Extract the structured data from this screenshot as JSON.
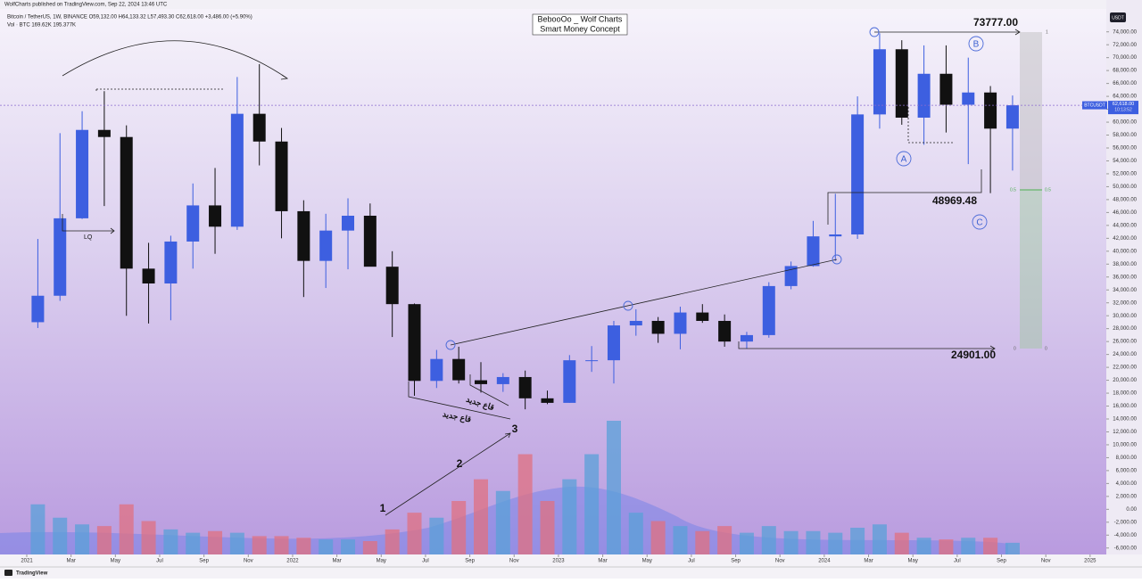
{
  "header": {
    "published": "WolfCharts published on TradingView.com, Sep 22, 2024 13:46 UTC",
    "ohlc": "Bitcoin / TetherUS, 1W, BINANCE  O59,132.00  H64,133.32  L57,493.30  C62,618.00  +3,486.00 (+5.90%)",
    "volume": "Vol · BTC  169.62K  195.377K"
  },
  "annotations": {
    "title1": "BebooOo _ Wolf Charts",
    "title2": "Smart Money Concept",
    "lq": "LQ",
    "a": "A",
    "b": "B",
    "c": "C",
    "w1": "1",
    "w2": "2",
    "w3": "3",
    "new_low": "قاع جديد",
    "high_label": "73777.00",
    "mid_label": "48969.48",
    "low_label": "24901.00",
    "fib_1": "1",
    "fib_half": "0.5",
    "fib_0": "0"
  },
  "price_tag": {
    "symbol": "BTCUSDT",
    "currency": "USDT",
    "last_price": {
      "value": 62618,
      "label": "62,618.00"
    },
    "countdown": "10:13:52"
  },
  "footer": {
    "brand": "TradingView"
  },
  "chart_data": {
    "type": "candlestick",
    "x": [
      "2021-01",
      "2021-02",
      "2021-03",
      "2021-04",
      "2021-05",
      "2021-06",
      "2021-07",
      "2021-08",
      "2021-09",
      "2021-10",
      "2021-11",
      "2021-12",
      "2022-01",
      "2022-02",
      "2022-03",
      "2022-04",
      "2022-05",
      "2022-06",
      "2022-07",
      "2022-08",
      "2022-09",
      "2022-10",
      "2022-11",
      "2022-12",
      "2023-01",
      "2023-02",
      "2023-03",
      "2023-04",
      "2023-05",
      "2023-06",
      "2023-07",
      "2023-08",
      "2023-09",
      "2023-10",
      "2023-11",
      "2023-12",
      "2024-01",
      "2024-02",
      "2024-03",
      "2024-04",
      "2024-05",
      "2024-06",
      "2024-07",
      "2024-08",
      "2024-09"
    ],
    "open": [
      29000,
      33100,
      45100,
      58800,
      57700,
      37300,
      35000,
      41500,
      47100,
      43800,
      61300,
      57000,
      46200,
      38500,
      43200,
      45500,
      37600,
      31800,
      19900,
      23300,
      20000,
      19400,
      20500,
      17200,
      16500,
      23100,
      23100,
      28500,
      29200,
      27200,
      30500,
      29200,
      26000,
      27000,
      34600,
      37700,
      42300,
      42600,
      61200,
      71300,
      60700,
      67500,
      62700,
      64600,
      59000
    ],
    "high": [
      41900,
      58300,
      61700,
      64800,
      59500,
      41300,
      42400,
      50500,
      52900,
      67000,
      69000,
      59100,
      47900,
      45800,
      48200,
      47400,
      40000,
      31900,
      24700,
      25200,
      22800,
      21100,
      21500,
      18400,
      23900,
      25300,
      29200,
      31000,
      29800,
      31400,
      31800,
      30200,
      27500,
      35200,
      38400,
      44700,
      48900,
      64000,
      73777,
      72700,
      71900,
      71900,
      70000,
      65600,
      64133
    ],
    "low": [
      28100,
      32300,
      45000,
      47000,
      30000,
      28800,
      29300,
      37300,
      39600,
      43300,
      53300,
      42000,
      32900,
      34300,
      37200,
      37700,
      26700,
      17600,
      18800,
      19500,
      18100,
      18200,
      15500,
      16300,
      16500,
      21300,
      19500,
      26900,
      25800,
      24800,
      28900,
      25200,
      24900,
      26600,
      34100,
      37600,
      38500,
      41900,
      59000,
      59600,
      56500,
      58400,
      53500,
      49000,
      52500
    ],
    "close": [
      33100,
      45100,
      58800,
      57700,
      37300,
      35000,
      41500,
      47100,
      43800,
      61300,
      57000,
      46200,
      38500,
      43200,
      45500,
      37600,
      31800,
      19900,
      23300,
      20000,
      19400,
      20500,
      17200,
      16500,
      23100,
      23100,
      28500,
      29200,
      27200,
      30500,
      29200,
      26000,
      27000,
      34600,
      37700,
      42300,
      42600,
      61200,
      71300,
      60700,
      67500,
      62700,
      64600,
      59000,
      62618
    ],
    "volume": [
      3000,
      2200,
      1800,
      1700,
      3000,
      2000,
      1500,
      1300,
      1400,
      1300,
      1100,
      1100,
      1000,
      900,
      900,
      800,
      1500,
      2500,
      2200,
      3200,
      4500,
      3800,
      6000,
      3200,
      4500,
      6000,
      8000,
      2500,
      2000,
      1700,
      1400,
      1700,
      1300,
      1700,
      1400,
      1400,
      1300,
      1600,
      1800,
      1300,
      1000,
      900,
      1000,
      1000,
      700
    ],
    "up_color": "#3d5fe0",
    "down_color": "#111111",
    "vol_up_color": "#5aa0d8",
    "vol_down_color": "#e07080",
    "ylim": [
      -7000,
      77000
    ],
    "yticks": [
      {
        "value": 74000,
        "label": "74,000.00"
      },
      {
        "value": 72000,
        "label": "72,000.00"
      },
      {
        "value": 70000,
        "label": "70,000.00"
      },
      {
        "value": 68000,
        "label": "68,000.00"
      },
      {
        "value": 66000,
        "label": "66,000.00"
      },
      {
        "value": 64000,
        "label": "64,000.00"
      },
      {
        "value": 62000,
        "label": "62,000.00"
      },
      {
        "value": 60000,
        "label": "60,000.00"
      },
      {
        "value": 58000,
        "label": "58,000.00"
      },
      {
        "value": 56000,
        "label": "56,000.00"
      },
      {
        "value": 54000,
        "label": "54,000.00"
      },
      {
        "value": 52000,
        "label": "52,000.00"
      },
      {
        "value": 50000,
        "label": "50,000.00"
      },
      {
        "value": 48000,
        "label": "48,000.00"
      },
      {
        "value": 46000,
        "label": "46,000.00"
      },
      {
        "value": 44000,
        "label": "44,000.00"
      },
      {
        "value": 42000,
        "label": "42,000.00"
      },
      {
        "value": 40000,
        "label": "40,000.00"
      },
      {
        "value": 38000,
        "label": "38,000.00"
      },
      {
        "value": 36000,
        "label": "36,000.00"
      },
      {
        "value": 34000,
        "label": "34,000.00"
      },
      {
        "value": 32000,
        "label": "32,000.00"
      },
      {
        "value": 30000,
        "label": "30,000.00"
      },
      {
        "value": 28000,
        "label": "28,000.00"
      },
      {
        "value": 26000,
        "label": "26,000.00"
      },
      {
        "value": 24000,
        "label": "24,000.00"
      },
      {
        "value": 22000,
        "label": "22,000.00"
      },
      {
        "value": 20000,
        "label": "20,000.00"
      },
      {
        "value": 18000,
        "label": "18,000.00"
      },
      {
        "value": 16000,
        "label": "16,000.00"
      },
      {
        "value": 14000,
        "label": "14,000.00"
      },
      {
        "value": 12000,
        "label": "12,000.00"
      },
      {
        "value": 10000,
        "label": "10,000.00"
      },
      {
        "value": 8000,
        "label": "8,000.00"
      },
      {
        "value": 6000,
        "label": "6,000.00"
      },
      {
        "value": 4000,
        "label": "4,000.00"
      },
      {
        "value": 2000,
        "label": "2,000.00"
      },
      {
        "value": 0,
        "label": "0.00"
      },
      {
        "value": -2000,
        "label": "-2,000.00"
      },
      {
        "value": -4000,
        "label": "-4,000.00"
      },
      {
        "value": -6000,
        "label": "-6,000.00"
      }
    ],
    "xticks": [
      {
        "value": "2021-01",
        "label": "2021"
      },
      {
        "value": "2021-03",
        "label": "Mar"
      },
      {
        "value": "2021-05",
        "label": "May"
      },
      {
        "value": "2021-07",
        "label": "Jul"
      },
      {
        "value": "2021-09",
        "label": "Sep"
      },
      {
        "value": "2021-11",
        "label": "Nov"
      },
      {
        "value": "2022-01",
        "label": "2022"
      },
      {
        "value": "2022-03",
        "label": "Mar"
      },
      {
        "value": "2022-05",
        "label": "May"
      },
      {
        "value": "2022-07",
        "label": "Jul"
      },
      {
        "value": "2022-09",
        "label": "Sep"
      },
      {
        "value": "2022-11",
        "label": "Nov"
      },
      {
        "value": "2023-01",
        "label": "2023"
      },
      {
        "value": "2023-03",
        "label": "Mar"
      },
      {
        "value": "2023-05",
        "label": "May"
      },
      {
        "value": "2023-07",
        "label": "Jul"
      },
      {
        "value": "2023-09",
        "label": "Sep"
      },
      {
        "value": "2023-11",
        "label": "Nov"
      },
      {
        "value": "2024-01",
        "label": "2024"
      },
      {
        "value": "2024-03",
        "label": "Mar"
      },
      {
        "value": "2024-05",
        "label": "May"
      },
      {
        "value": "2024-07",
        "label": "Jul"
      },
      {
        "value": "2024-09",
        "label": "Sep"
      },
      {
        "value": "2024-11",
        "label": "Nov"
      },
      {
        "value": "2025-01",
        "label": "2025"
      }
    ]
  }
}
